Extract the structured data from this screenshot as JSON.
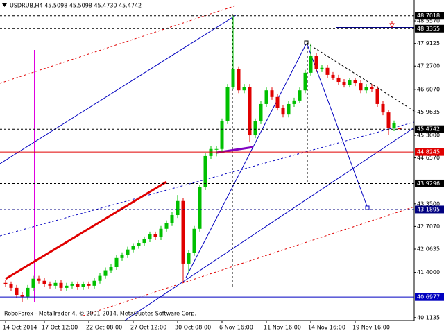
{
  "chart_data": {
    "type": "candlestick",
    "title": "USDRUB,H4  45.5098 45.5098 45.4730 45.4742",
    "footer": "RoboForex - MetaTrader 4, © 2001-2014, MetaQuotes Software Corp.",
    "up_color": "#00c000",
    "down_color": "#e00000",
    "ylim": [
      40.03,
      49.15
    ],
    "yticks": [
      {
        "value": 48.557,
        "label": "48.5570"
      },
      47.9125,
      {
        "value": 47.27,
        "label": "47.2700"
      },
      {
        "value": 46.607,
        "label": "46.6070"
      },
      45.9635,
      {
        "value": 45.3,
        "label": "45.3000"
      },
      {
        "value": 44.657,
        "label": "44.6570"
      },
      {
        "value": 43.35,
        "label": "43.3500"
      },
      {
        "value": 42.707,
        "label": "42.7070"
      },
      42.0635,
      {
        "value": 41.4,
        "label": "41.4000"
      },
      40.1135
    ],
    "levels": [
      {
        "value": 48.7018,
        "color": "#000000",
        "style": "dashed"
      },
      {
        "value": 48.3355,
        "color": "#000000",
        "style": "dashed"
      },
      {
        "value": 45.4742,
        "color": "#000000",
        "style": "dashed"
      },
      {
        "value": 44.8245,
        "color": "#e00000",
        "style": "solid"
      },
      {
        "value": 43.9296,
        "color": "#000000",
        "style": "dashed"
      },
      {
        "value": 43.1895,
        "color": "#000080",
        "style": "dashed"
      },
      {
        "value": 40.6977,
        "color": "#0000c0",
        "style": "solid"
      }
    ],
    "categories": [
      "14 Oct 2014",
      null,
      null,
      null,
      null,
      null,
      null,
      "17 Oct 12:00",
      null,
      null,
      null,
      null,
      null,
      null,
      null,
      "22 Oct 08:00",
      null,
      null,
      null,
      null,
      null,
      null,
      null,
      "27 Oct 12:00",
      null,
      null,
      null,
      null,
      null,
      null,
      null,
      "30 Oct 08:00",
      null,
      null,
      null,
      null,
      null,
      null,
      null,
      "6 Nov 16:00",
      null,
      null,
      null,
      null,
      null,
      null,
      null,
      "11 Nov 16:00",
      null,
      null,
      null,
      null,
      null,
      null,
      null,
      "14 Nov 16:00",
      null,
      null,
      null,
      null,
      null,
      null,
      null,
      "19 Nov 16:00",
      null,
      null,
      null,
      null,
      null,
      null,
      null,
      null
    ],
    "candles": [
      [
        41.1,
        41.18,
        40.98,
        41.06
      ],
      [
        41.06,
        41.14,
        40.88,
        40.96
      ],
      [
        40.96,
        41.04,
        40.68,
        40.76
      ],
      [
        40.76,
        40.84,
        40.55,
        40.71
      ],
      [
        40.71,
        41.04,
        40.63,
        40.96
      ],
      [
        40.96,
        41.3,
        40.88,
        41.22
      ],
      [
        41.22,
        41.3,
        41.08,
        41.16
      ],
      [
        41.16,
        41.24,
        40.98,
        41.06
      ],
      [
        41.06,
        41.14,
        40.94,
        41.02
      ],
      [
        41.02,
        41.18,
        40.94,
        41.1
      ],
      [
        41.1,
        41.18,
        40.88,
        40.96
      ],
      [
        40.96,
        41.1,
        40.88,
        41.02
      ],
      [
        41.02,
        41.14,
        40.94,
        41.06
      ],
      [
        41.06,
        41.14,
        40.9,
        40.98
      ],
      [
        40.98,
        41.14,
        40.9,
        41.06
      ],
      [
        41.06,
        41.14,
        40.94,
        41.02
      ],
      [
        41.02,
        41.24,
        40.94,
        41.16
      ],
      [
        41.16,
        41.38,
        41.08,
        41.3
      ],
      [
        41.3,
        41.54,
        41.22,
        41.46
      ],
      [
        41.46,
        41.63,
        41.38,
        41.55
      ],
      [
        41.55,
        41.89,
        41.47,
        41.81
      ],
      [
        41.81,
        41.97,
        41.73,
        41.89
      ],
      [
        41.89,
        42.13,
        41.81,
        42.05
      ],
      [
        42.05,
        42.23,
        41.97,
        42.15
      ],
      [
        42.15,
        42.32,
        42.07,
        42.24
      ],
      [
        42.24,
        42.42,
        42.16,
        42.34
      ],
      [
        42.34,
        42.56,
        42.26,
        42.48
      ],
      [
        42.48,
        42.56,
        42.32,
        42.4
      ],
      [
        42.4,
        42.72,
        42.32,
        42.64
      ],
      [
        42.64,
        42.88,
        42.56,
        42.8
      ],
      [
        42.8,
        43.11,
        42.72,
        43.03
      ],
      [
        43.03,
        43.6,
        42.95,
        43.43
      ],
      [
        43.43,
        43.51,
        41.14,
        41.65
      ],
      [
        41.65,
        42.03,
        41.4,
        41.95
      ],
      [
        41.95,
        42.72,
        41.87,
        42.64
      ],
      [
        42.64,
        43.9,
        42.56,
        43.82
      ],
      [
        43.82,
        44.79,
        43.74,
        44.71
      ],
      [
        44.71,
        44.99,
        44.63,
        44.91
      ],
      [
        44.91,
        44.99,
        44.7,
        44.91
      ],
      [
        44.91,
        45.78,
        44.83,
        45.7
      ],
      [
        45.7,
        46.76,
        45.62,
        46.68
      ],
      [
        46.68,
        48.7,
        46.6,
        47.18
      ],
      [
        47.18,
        47.26,
        46.5,
        46.58
      ],
      [
        46.58,
        46.76,
        46.5,
        46.68
      ],
      [
        46.68,
        46.76,
        45.1,
        45.3
      ],
      [
        45.3,
        45.78,
        45.22,
        45.7
      ],
      [
        45.7,
        46.27,
        45.62,
        46.19
      ],
      [
        46.19,
        46.66,
        46.11,
        46.58
      ],
      [
        46.58,
        46.66,
        46.31,
        46.39
      ],
      [
        46.39,
        46.47,
        46.01,
        46.09
      ],
      [
        46.09,
        46.17,
        45.81,
        45.89
      ],
      [
        45.89,
        46.27,
        45.81,
        46.19
      ],
      [
        46.19,
        46.37,
        46.11,
        46.29
      ],
      [
        46.29,
        46.66,
        46.21,
        46.58
      ],
      [
        46.58,
        47.16,
        46.5,
        47.08
      ],
      [
        47.08,
        47.91,
        47.0,
        47.57
      ],
      [
        47.57,
        47.65,
        47.1,
        47.18
      ],
      [
        47.18,
        47.3,
        47.1,
        47.22
      ],
      [
        47.22,
        47.3,
        46.94,
        47.02
      ],
      [
        47.02,
        47.1,
        46.86,
        46.94
      ],
      [
        46.94,
        47.02,
        46.74,
        46.82
      ],
      [
        46.82,
        46.9,
        46.66,
        46.74
      ],
      [
        46.74,
        46.94,
        46.66,
        46.86
      ],
      [
        46.86,
        46.94,
        46.7,
        46.78
      ],
      [
        46.78,
        46.86,
        46.5,
        46.58
      ],
      [
        46.58,
        46.76,
        46.5,
        46.68
      ],
      [
        46.68,
        46.76,
        46.54,
        46.62
      ],
      [
        46.62,
        46.7,
        46.11,
        46.19
      ],
      [
        46.19,
        46.27,
        45.87,
        45.95
      ],
      [
        45.95,
        46.03,
        45.3,
        45.5
      ],
      [
        45.5,
        45.72,
        45.42,
        45.64
      ],
      [
        45.5098,
        45.5098,
        45.473,
        45.4742
      ]
    ]
  }
}
